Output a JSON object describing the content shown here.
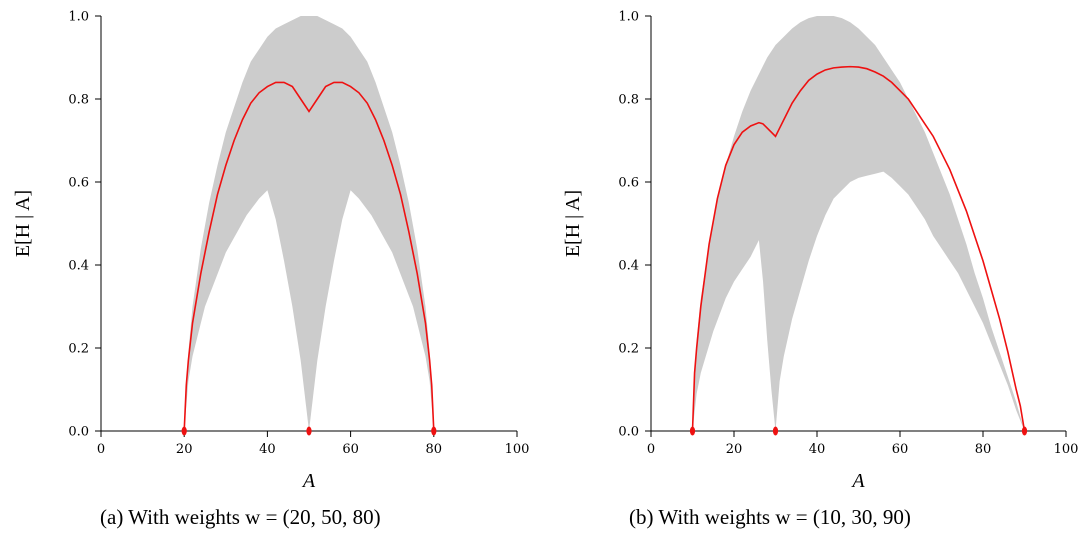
{
  "figure": {
    "colors": {
      "band": "#cccccc",
      "mean_line": "#ee1111",
      "axis": "#000000"
    }
  },
  "chart_data": [
    {
      "type": "area",
      "caption": "(a) With weights w = (20, 50, 80)",
      "xlabel": "A",
      "ylabel": "E[H | A]",
      "xlim": [
        0,
        100
      ],
      "ylim": [
        0,
        1
      ],
      "xticks": [
        "0",
        "20",
        "40",
        "60",
        "80",
        "100"
      ],
      "yticks": [
        "0.0",
        "0.2",
        "0.4",
        "0.6",
        "0.8",
        "1.0"
      ],
      "grid": false,
      "weights": [
        20,
        50,
        80
      ],
      "band_upper": [
        [
          20,
          0
        ],
        [
          21,
          0.19
        ],
        [
          22,
          0.3
        ],
        [
          24,
          0.44
        ],
        [
          26,
          0.55
        ],
        [
          28,
          0.64
        ],
        [
          30,
          0.72
        ],
        [
          32,
          0.78
        ],
        [
          34,
          0.84
        ],
        [
          36,
          0.89
        ],
        [
          38,
          0.92
        ],
        [
          40,
          0.95
        ],
        [
          42,
          0.97
        ],
        [
          44,
          0.98
        ],
        [
          46,
          0.99
        ],
        [
          48,
          1.0
        ],
        [
          50,
          1.0
        ],
        [
          52,
          1.0
        ],
        [
          54,
          0.99
        ],
        [
          56,
          0.98
        ],
        [
          58,
          0.97
        ],
        [
          60,
          0.95
        ],
        [
          62,
          0.92
        ],
        [
          64,
          0.89
        ],
        [
          66,
          0.84
        ],
        [
          68,
          0.78
        ],
        [
          70,
          0.72
        ],
        [
          72,
          0.64
        ],
        [
          74,
          0.55
        ],
        [
          76,
          0.44
        ],
        [
          78,
          0.3
        ],
        [
          79,
          0.19
        ],
        [
          80,
          0
        ]
      ],
      "band_lower": [
        [
          20,
          0
        ],
        [
          21,
          0.12
        ],
        [
          22,
          0.18
        ],
        [
          25,
          0.3
        ],
        [
          30,
          0.43
        ],
        [
          35,
          0.52
        ],
        [
          38,
          0.56
        ],
        [
          40,
          0.58
        ],
        [
          42,
          0.51
        ],
        [
          44,
          0.41
        ],
        [
          46,
          0.3
        ],
        [
          48,
          0.17
        ],
        [
          50,
          0
        ],
        [
          52,
          0.17
        ],
        [
          54,
          0.3
        ],
        [
          56,
          0.41
        ],
        [
          58,
          0.51
        ],
        [
          60,
          0.58
        ],
        [
          62,
          0.56
        ],
        [
          65,
          0.52
        ],
        [
          70,
          0.43
        ],
        [
          75,
          0.3
        ],
        [
          78,
          0.18
        ],
        [
          79,
          0.12
        ],
        [
          80,
          0
        ]
      ],
      "mean_line": [
        [
          20,
          0
        ],
        [
          20.5,
          0.11
        ],
        [
          21,
          0.17
        ],
        [
          22,
          0.26
        ],
        [
          24,
          0.38
        ],
        [
          26,
          0.48
        ],
        [
          28,
          0.57
        ],
        [
          30,
          0.64
        ],
        [
          32,
          0.7
        ],
        [
          34,
          0.75
        ],
        [
          36,
          0.79
        ],
        [
          38,
          0.815
        ],
        [
          40,
          0.83
        ],
        [
          42,
          0.84
        ],
        [
          44,
          0.84
        ],
        [
          46,
          0.83
        ],
        [
          48,
          0.8
        ],
        [
          50,
          0.77
        ],
        [
          52,
          0.8
        ],
        [
          54,
          0.83
        ],
        [
          56,
          0.84
        ],
        [
          58,
          0.84
        ],
        [
          60,
          0.83
        ],
        [
          62,
          0.815
        ],
        [
          64,
          0.79
        ],
        [
          66,
          0.75
        ],
        [
          68,
          0.7
        ],
        [
          70,
          0.64
        ],
        [
          72,
          0.57
        ],
        [
          74,
          0.48
        ],
        [
          76,
          0.38
        ],
        [
          78,
          0.26
        ],
        [
          79,
          0.17
        ],
        [
          79.5,
          0.11
        ],
        [
          80,
          0
        ]
      ],
      "points": [
        [
          20,
          0
        ],
        [
          50,
          0
        ],
        [
          80,
          0
        ]
      ]
    },
    {
      "type": "area",
      "caption": "(b) With weights w = (10, 30, 90)",
      "xlabel": "A",
      "ylabel": "E[H | A]",
      "xlim": [
        0,
        100
      ],
      "ylim": [
        0,
        1
      ],
      "xticks": [
        "0",
        "20",
        "40",
        "60",
        "80",
        "100"
      ],
      "yticks": [
        "0.0",
        "0.2",
        "0.4",
        "0.6",
        "0.8",
        "1.0"
      ],
      "grid": false,
      "weights": [
        10,
        30,
        90
      ],
      "band_upper": [
        [
          10,
          0
        ],
        [
          11,
          0.22
        ],
        [
          12,
          0.32
        ],
        [
          14,
          0.45
        ],
        [
          16,
          0.56
        ],
        [
          18,
          0.64
        ],
        [
          20,
          0.71
        ],
        [
          22,
          0.77
        ],
        [
          24,
          0.82
        ],
        [
          26,
          0.86
        ],
        [
          28,
          0.9
        ],
        [
          30,
          0.93
        ],
        [
          32,
          0.95
        ],
        [
          34,
          0.97
        ],
        [
          36,
          0.985
        ],
        [
          38,
          0.995
        ],
        [
          40,
          1.0
        ],
        [
          42,
          1.0
        ],
        [
          44,
          1.0
        ],
        [
          46,
          0.995
        ],
        [
          48,
          0.985
        ],
        [
          50,
          0.97
        ],
        [
          52,
          0.95
        ],
        [
          54,
          0.93
        ],
        [
          56,
          0.9
        ],
        [
          58,
          0.87
        ],
        [
          60,
          0.84
        ],
        [
          62,
          0.8
        ],
        [
          64,
          0.76
        ],
        [
          66,
          0.72
        ],
        [
          68,
          0.67
        ],
        [
          70,
          0.62
        ],
        [
          72,
          0.57
        ],
        [
          74,
          0.51
        ],
        [
          76,
          0.45
        ],
        [
          78,
          0.38
        ],
        [
          80,
          0.32
        ],
        [
          82,
          0.25
        ],
        [
          84,
          0.19
        ],
        [
          86,
          0.13
        ],
        [
          88,
          0.07
        ],
        [
          90,
          0
        ]
      ],
      "band_lower": [
        [
          10,
          0
        ],
        [
          11,
          0.09
        ],
        [
          12,
          0.14
        ],
        [
          15,
          0.24
        ],
        [
          18,
          0.32
        ],
        [
          20,
          0.36
        ],
        [
          22,
          0.39
        ],
        [
          24,
          0.42
        ],
        [
          26,
          0.46
        ],
        [
          27,
          0.36
        ],
        [
          28,
          0.22
        ],
        [
          29,
          0.1
        ],
        [
          30,
          0
        ],
        [
          31,
          0.12
        ],
        [
          32,
          0.18
        ],
        [
          34,
          0.27
        ],
        [
          36,
          0.34
        ],
        [
          38,
          0.41
        ],
        [
          40,
          0.47
        ],
        [
          42,
          0.52
        ],
        [
          44,
          0.56
        ],
        [
          46,
          0.58
        ],
        [
          48,
          0.6
        ],
        [
          50,
          0.61
        ],
        [
          52,
          0.615
        ],
        [
          54,
          0.62
        ],
        [
          56,
          0.625
        ],
        [
          58,
          0.61
        ],
        [
          60,
          0.59
        ],
        [
          62,
          0.57
        ],
        [
          64,
          0.54
        ],
        [
          66,
          0.51
        ],
        [
          68,
          0.47
        ],
        [
          70,
          0.44
        ],
        [
          72,
          0.41
        ],
        [
          74,
          0.38
        ],
        [
          76,
          0.34
        ],
        [
          78,
          0.3
        ],
        [
          80,
          0.26
        ],
        [
          82,
          0.21
        ],
        [
          84,
          0.16
        ],
        [
          86,
          0.11
        ],
        [
          88,
          0.05
        ],
        [
          90,
          0
        ]
      ],
      "mean_line": [
        [
          10,
          0
        ],
        [
          10.5,
          0.14
        ],
        [
          11,
          0.2
        ],
        [
          12,
          0.3
        ],
        [
          14,
          0.45
        ],
        [
          16,
          0.56
        ],
        [
          18,
          0.64
        ],
        [
          20,
          0.69
        ],
        [
          22,
          0.72
        ],
        [
          24,
          0.735
        ],
        [
          26,
          0.743
        ],
        [
          27,
          0.74
        ],
        [
          28,
          0.73
        ],
        [
          30,
          0.71
        ],
        [
          31,
          0.73
        ],
        [
          32,
          0.75
        ],
        [
          34,
          0.79
        ],
        [
          36,
          0.82
        ],
        [
          38,
          0.845
        ],
        [
          40,
          0.86
        ],
        [
          42,
          0.87
        ],
        [
          44,
          0.875
        ],
        [
          46,
          0.877
        ],
        [
          48,
          0.878
        ],
        [
          50,
          0.877
        ],
        [
          52,
          0.873
        ],
        [
          54,
          0.865
        ],
        [
          56,
          0.855
        ],
        [
          58,
          0.84
        ],
        [
          60,
          0.82
        ],
        [
          62,
          0.8
        ],
        [
          64,
          0.77
        ],
        [
          66,
          0.74
        ],
        [
          68,
          0.71
        ],
        [
          70,
          0.67
        ],
        [
          72,
          0.63
        ],
        [
          74,
          0.58
        ],
        [
          76,
          0.53
        ],
        [
          78,
          0.47
        ],
        [
          80,
          0.41
        ],
        [
          82,
          0.34
        ],
        [
          84,
          0.27
        ],
        [
          86,
          0.19
        ],
        [
          88,
          0.1
        ],
        [
          89,
          0.06
        ],
        [
          90,
          0
        ]
      ],
      "points": [
        [
          10,
          0
        ],
        [
          30,
          0
        ],
        [
          90,
          0
        ]
      ]
    }
  ]
}
